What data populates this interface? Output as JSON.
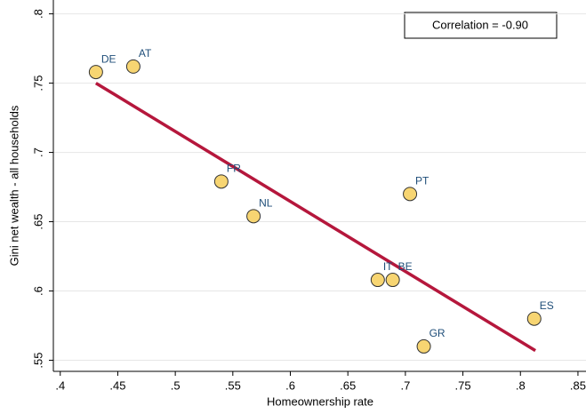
{
  "chart_data": {
    "type": "scatter",
    "xlabel": "Homeownership rate",
    "ylabel": "Gini net wealth - all households",
    "annotation": "Correlation = -0.90",
    "point_labels": [
      "DE",
      "AT",
      "FR",
      "NL",
      "PT",
      "IT",
      "BE",
      "ES",
      "GR"
    ],
    "x": [
      0.431,
      0.4635,
      0.54,
      0.568,
      0.704,
      0.676,
      0.689,
      0.812,
      0.716
    ],
    "y": [
      0.758,
      0.762,
      0.679,
      0.654,
      0.67,
      0.608,
      0.608,
      0.58,
      0.56
    ],
    "color": "#f7d572",
    "label_color": "#1f4e79",
    "fit_line": {
      "x": [
        0.431,
        0.813
      ],
      "y": [
        0.75,
        0.557
      ],
      "color": "#b5173c"
    },
    "xlim": [
      0.394,
      0.857
    ],
    "ylim": [
      0.542,
      0.81
    ],
    "xticks": [
      {
        "value": 0.4,
        "label": ".4"
      },
      {
        "value": 0.45,
        "label": ".45"
      },
      {
        "value": 0.5,
        "label": ".5"
      },
      {
        "value": 0.55,
        "label": ".55"
      },
      {
        "value": 0.6,
        "label": ".6"
      },
      {
        "value": 0.65,
        "label": ".65"
      },
      {
        "value": 0.7,
        "label": ".7"
      },
      {
        "value": 0.75,
        "label": ".75"
      },
      {
        "value": 0.8,
        "label": ".8"
      },
      {
        "value": 0.85,
        "label": ".85"
      }
    ],
    "yticks": [
      {
        "value": 0.55,
        "label": ".55"
      },
      {
        "value": 0.6,
        "label": ".6"
      },
      {
        "value": 0.65,
        "label": ".65"
      },
      {
        "value": 0.7,
        "label": ".7"
      },
      {
        "value": 0.75,
        "label": ".75"
      },
      {
        "value": 0.8,
        "label": ".8"
      }
    ],
    "grid": true
  }
}
